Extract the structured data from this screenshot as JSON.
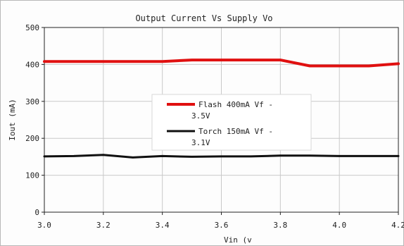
{
  "chart_data": {
    "type": "line",
    "title": "Output Current Vs Supply Vo",
    "xlabel": "Vin (v",
    "ylabel": "Iout (mA)",
    "xlim": [
      3.0,
      4.2
    ],
    "ylim": [
      0,
      500
    ],
    "x_ticks": [
      "3.0",
      "3.2",
      "3.4",
      "3.6",
      "3.8",
      "4.0",
      "4.2"
    ],
    "y_ticks": [
      "0",
      "100",
      "200",
      "300",
      "400",
      "500"
    ],
    "grid": true,
    "legend_position": "center",
    "series": [
      {
        "name": "Flash 400mA Vf - 3.5V",
        "color": "#e01010",
        "x": [
          3.0,
          3.1,
          3.2,
          3.3,
          3.4,
          3.5,
          3.6,
          3.7,
          3.8,
          3.9,
          4.0,
          4.1,
          4.2
        ],
        "y": [
          408,
          408,
          408,
          408,
          408,
          412,
          412,
          412,
          412,
          396,
          396,
          396,
          402
        ]
      },
      {
        "name": "Torch 150mA Vf - 3.1V",
        "color": "#101010",
        "x": [
          3.0,
          3.1,
          3.2,
          3.3,
          3.4,
          3.5,
          3.6,
          3.7,
          3.8,
          3.9,
          4.0,
          4.1,
          4.2
        ],
        "y": [
          151,
          152,
          155,
          148,
          152,
          150,
          151,
          151,
          153,
          153,
          152,
          152,
          152
        ]
      }
    ]
  }
}
